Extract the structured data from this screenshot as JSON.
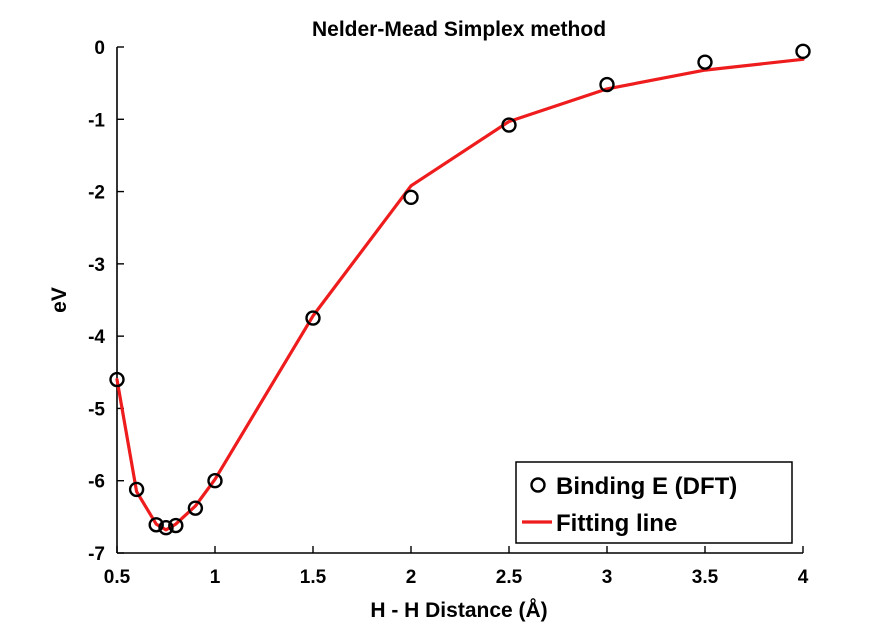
{
  "chart_data": {
    "type": "line",
    "title": "Nelder-Mead Simplex method",
    "xlabel": "H - H Distance (Å)",
    "ylabel": "eV",
    "xlim": [
      0.5,
      4
    ],
    "ylim": [
      -7,
      0
    ],
    "xticks": [
      0.5,
      1,
      1.5,
      2,
      2.5,
      3,
      3.5,
      4
    ],
    "xtick_labels": [
      "0.5",
      "1",
      "1.5",
      "2",
      "2.5",
      "3",
      "3.5",
      "4"
    ],
    "yticks": [
      0,
      -1,
      -2,
      -3,
      -4,
      -5,
      -6,
      -7
    ],
    "ytick_labels": [
      "0",
      "-1",
      "-2",
      "-3",
      "-4",
      "-5",
      "-6",
      "-7"
    ],
    "grid": false,
    "legend_position": "bottom-right",
    "series": [
      {
        "name": "Binding E (DFT)",
        "style": "markers",
        "marker": "circle",
        "color": "#000000",
        "x": [
          0.5,
          0.6,
          0.7,
          0.75,
          0.8,
          0.9,
          1.0,
          1.5,
          2.0,
          2.5,
          3.0,
          3.5,
          4.0
        ],
        "y": [
          -4.6,
          -6.12,
          -6.61,
          -6.65,
          -6.62,
          -6.38,
          -6.0,
          -3.75,
          -2.08,
          -1.08,
          -0.52,
          -0.21,
          -0.06
        ]
      },
      {
        "name": "Fitting line",
        "style": "line",
        "color": "#ee1c1c",
        "x": [
          0.5,
          0.6,
          0.7,
          0.75,
          0.8,
          0.9,
          1.0,
          1.5,
          2.0,
          2.5,
          3.0,
          3.5,
          4.0
        ],
        "y": [
          -4.6,
          -6.15,
          -6.6,
          -6.68,
          -6.6,
          -6.35,
          -5.98,
          -3.72,
          -1.92,
          -1.03,
          -0.58,
          -0.32,
          -0.17
        ]
      }
    ]
  }
}
